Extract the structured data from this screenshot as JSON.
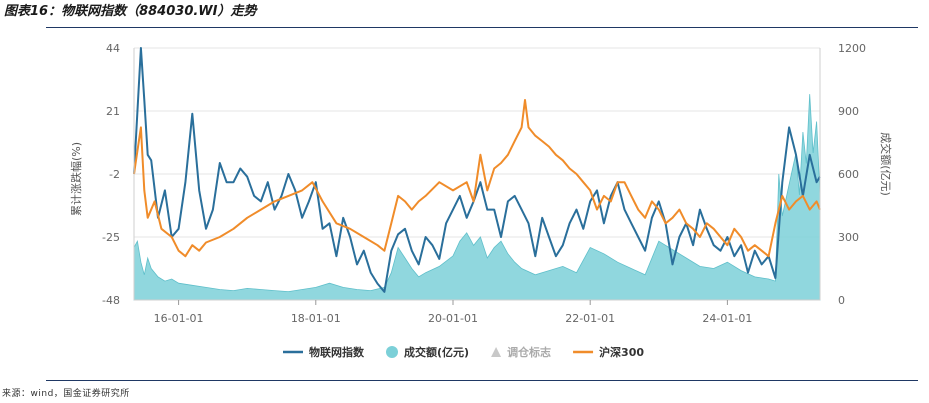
{
  "figure": {
    "title": "图表16：物联网指数（884030.WI）走势",
    "source": "来源：wind，国金证券研究所"
  },
  "colors": {
    "index_line": "#2a6f9b",
    "volume_area": "#7cd0d8",
    "marker": "#c8c8c8",
    "hs300_line": "#f08c2a",
    "grid": "#e6e6e6"
  },
  "chart_data": {
    "type": "line",
    "x_tick_labels": [
      "16-01-01",
      "18-01-01",
      "20-01-01",
      "22-01-01",
      "24-01-01"
    ],
    "x_tick_positions": [
      2016.0,
      2018.0,
      2020.0,
      2022.0,
      2024.0
    ],
    "xlim": [
      2015.35,
      2025.35
    ],
    "left_axis": {
      "label": "累计涨跌幅(%)",
      "ticks": [
        44,
        21,
        -2,
        -25,
        -48
      ],
      "ylim": [
        -48,
        44
      ]
    },
    "right_axis": {
      "label": "成交额(亿元)",
      "ticks": [
        1200,
        900,
        600,
        300,
        0
      ],
      "ylim": [
        0,
        1200
      ]
    },
    "legend": [
      {
        "name": "物联网指数",
        "type": "line"
      },
      {
        "name": "成交额(亿元)",
        "type": "circle"
      },
      {
        "name": "调仓标志",
        "type": "triangle",
        "muted": true
      },
      {
        "name": "沪深300",
        "type": "line"
      }
    ],
    "series": [
      {
        "name": "物联网指数",
        "axis": "left",
        "type": "line",
        "x": [
          2015.35,
          2015.45,
          2015.5,
          2015.55,
          2015.6,
          2015.7,
          2015.8,
          2015.9,
          2016.0,
          2016.1,
          2016.2,
          2016.3,
          2016.4,
          2016.5,
          2016.6,
          2016.7,
          2016.8,
          2016.9,
          2017.0,
          2017.1,
          2017.2,
          2017.3,
          2017.4,
          2017.5,
          2017.6,
          2017.7,
          2017.8,
          2017.9,
          2018.0,
          2018.1,
          2018.2,
          2018.3,
          2018.4,
          2018.5,
          2018.6,
          2018.7,
          2018.8,
          2018.9,
          2019.0,
          2019.1,
          2019.2,
          2019.3,
          2019.4,
          2019.5,
          2019.6,
          2019.7,
          2019.8,
          2019.9,
          2020.0,
          2020.1,
          2020.2,
          2020.3,
          2020.4,
          2020.5,
          2020.6,
          2020.7,
          2020.8,
          2020.9,
          2021.0,
          2021.1,
          2021.2,
          2021.3,
          2021.4,
          2021.5,
          2021.6,
          2021.7,
          2021.8,
          2021.9,
          2022.0,
          2022.1,
          2022.2,
          2022.3,
          2022.4,
          2022.5,
          2022.6,
          2022.7,
          2022.8,
          2022.9,
          2023.0,
          2023.1,
          2023.2,
          2023.3,
          2023.4,
          2023.5,
          2023.6,
          2023.7,
          2023.8,
          2023.9,
          2024.0,
          2024.1,
          2024.2,
          2024.3,
          2024.4,
          2024.5,
          2024.6,
          2024.7,
          2024.8,
          2024.9,
          2025.0,
          2025.1,
          2025.2,
          2025.3,
          2025.35
        ],
        "values": [
          -2,
          44,
          25,
          5,
          3,
          -18,
          -8,
          -25,
          -22,
          -5,
          20,
          -8,
          -22,
          -15,
          2,
          -5,
          -5,
          0,
          -3,
          -10,
          -12,
          -5,
          -15,
          -10,
          -2,
          -8,
          -18,
          -12,
          -5,
          -22,
          -20,
          -32,
          -18,
          -25,
          -35,
          -30,
          -38,
          -42,
          -45,
          -30,
          -24,
          -22,
          -30,
          -35,
          -25,
          -28,
          -33,
          -20,
          -15,
          -10,
          -18,
          -12,
          -5,
          -15,
          -15,
          -25,
          -12,
          -10,
          -15,
          -20,
          -32,
          -18,
          -25,
          -32,
          -28,
          -20,
          -15,
          -22,
          -12,
          -8,
          -20,
          -10,
          -5,
          -15,
          -20,
          -25,
          -30,
          -18,
          -12,
          -20,
          -35,
          -25,
          -20,
          -28,
          -15,
          -22,
          -28,
          -30,
          -25,
          -32,
          -28,
          -38,
          -30,
          -35,
          -32,
          -40,
          -5,
          15,
          5,
          -10,
          5,
          -5,
          -3
        ]
      },
      {
        "name": "沪深300",
        "axis": "left",
        "type": "line",
        "x": [
          2015.35,
          2015.45,
          2015.5,
          2015.55,
          2015.65,
          2015.75,
          2015.9,
          2016.0,
          2016.1,
          2016.2,
          2016.3,
          2016.4,
          2016.6,
          2016.8,
          2017.0,
          2017.2,
          2017.4,
          2017.6,
          2017.8,
          2017.95,
          2018.1,
          2018.3,
          2018.5,
          2018.7,
          2018.9,
          2019.0,
          2019.1,
          2019.2,
          2019.3,
          2019.4,
          2019.5,
          2019.6,
          2019.8,
          2020.0,
          2020.2,
          2020.3,
          2020.4,
          2020.5,
          2020.6,
          2020.7,
          2020.8,
          2020.9,
          2021.0,
          2021.05,
          2021.1,
          2021.2,
          2021.3,
          2021.4,
          2021.5,
          2021.6,
          2021.7,
          2021.8,
          2021.9,
          2022.0,
          2022.1,
          2022.2,
          2022.3,
          2022.4,
          2022.5,
          2022.6,
          2022.7,
          2022.8,
          2022.9,
          2023.0,
          2023.1,
          2023.2,
          2023.3,
          2023.4,
          2023.5,
          2023.6,
          2023.7,
          2023.8,
          2023.9,
          2024.0,
          2024.1,
          2024.2,
          2024.3,
          2024.4,
          2024.5,
          2024.6,
          2024.7,
          2024.75,
          2024.8,
          2024.9,
          2025.0,
          2025.1,
          2025.2,
          2025.3,
          2025.35
        ],
        "values": [
          -2,
          15,
          -8,
          -18,
          -12,
          -22,
          -25,
          -30,
          -32,
          -28,
          -30,
          -27,
          -25,
          -22,
          -18,
          -15,
          -12,
          -10,
          -8,
          -5,
          -12,
          -20,
          -22,
          -25,
          -28,
          -30,
          -20,
          -10,
          -12,
          -15,
          -12,
          -10,
          -5,
          -8,
          -5,
          -12,
          5,
          -8,
          0,
          2,
          5,
          10,
          15,
          25,
          15,
          12,
          10,
          8,
          5,
          3,
          0,
          -2,
          -5,
          -8,
          -15,
          -10,
          -12,
          -5,
          -5,
          -10,
          -15,
          -18,
          -12,
          -15,
          -20,
          -18,
          -15,
          -20,
          -22,
          -25,
          -20,
          -22,
          -25,
          -28,
          -22,
          -25,
          -30,
          -28,
          -30,
          -32,
          -20,
          -15,
          -10,
          -15,
          -12,
          -10,
          -15,
          -12,
          -15
        ]
      },
      {
        "name": "成交额(亿元)",
        "axis": "right",
        "type": "area",
        "x": [
          2015.35,
          2015.4,
          2015.45,
          2015.5,
          2015.55,
          2015.6,
          2015.7,
          2015.8,
          2015.9,
          2016.0,
          2016.2,
          2016.4,
          2016.6,
          2016.8,
          2017.0,
          2017.2,
          2017.4,
          2017.6,
          2017.8,
          2018.0,
          2018.2,
          2018.4,
          2018.6,
          2018.8,
          2019.0,
          2019.1,
          2019.2,
          2019.3,
          2019.4,
          2019.5,
          2019.6,
          2019.8,
          2020.0,
          2020.1,
          2020.2,
          2020.3,
          2020.4,
          2020.5,
          2020.6,
          2020.7,
          2020.8,
          2020.9,
          2021.0,
          2021.2,
          2021.4,
          2021.6,
          2021.8,
          2022.0,
          2022.2,
          2022.4,
          2022.6,
          2022.8,
          2023.0,
          2023.2,
          2023.4,
          2023.6,
          2023.8,
          2024.0,
          2024.2,
          2024.4,
          2024.6,
          2024.7,
          2024.75,
          2024.8,
          2024.9,
          2025.0,
          2025.05,
          2025.1,
          2025.15,
          2025.2,
          2025.25,
          2025.3,
          2025.35
        ],
        "values": [
          250,
          280,
          180,
          120,
          200,
          150,
          110,
          90,
          100,
          80,
          70,
          60,
          50,
          45,
          55,
          50,
          45,
          40,
          50,
          60,
          80,
          60,
          50,
          45,
          60,
          130,
          250,
          200,
          150,
          110,
          130,
          160,
          210,
          280,
          320,
          260,
          300,
          200,
          250,
          280,
          220,
          180,
          150,
          120,
          140,
          160,
          130,
          250,
          220,
          180,
          150,
          120,
          280,
          240,
          200,
          160,
          150,
          180,
          140,
          110,
          100,
          90,
          600,
          400,
          550,
          700,
          500,
          800,
          650,
          980,
          700,
          850,
          500
        ]
      }
    ]
  }
}
